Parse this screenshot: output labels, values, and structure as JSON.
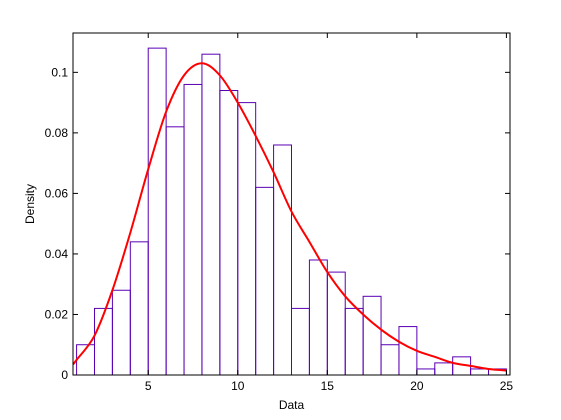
{
  "chart_data": {
    "type": "bar",
    "title": "",
    "xlabel": "Data",
    "ylabel": "Density",
    "xlim": [
      0.8,
      25.2
    ],
    "ylim": [
      0,
      0.113
    ],
    "xticks": [
      5,
      10,
      15,
      20,
      25
    ],
    "xtick_labels": [
      "5",
      "10",
      "15",
      "20",
      "25"
    ],
    "yticks": [
      0,
      0.02,
      0.04,
      0.06,
      0.08,
      0.1
    ],
    "ytick_labels": [
      "0",
      "0.02",
      "0.04",
      "0.06",
      "0.08",
      "0.1"
    ],
    "grid": false,
    "bin_edges": [
      1,
      2,
      3,
      4,
      5,
      6,
      7,
      8,
      9,
      10,
      11,
      12,
      13,
      14,
      15,
      16,
      17,
      18,
      19,
      20,
      21,
      22,
      23,
      24,
      25
    ],
    "series": [
      {
        "kind": "histogram",
        "values": [
          0.01,
          0.022,
          0.028,
          0.044,
          0.108,
          0.082,
          0.096,
          0.106,
          0.094,
          0.09,
          0.062,
          0.076,
          0.022,
          0.038,
          0.034,
          0.022,
          0.026,
          0.01,
          0.016,
          0.002,
          0.004,
          0.006,
          0.002,
          0.002
        ],
        "color": "#5a00b4"
      },
      {
        "kind": "fitted-curve",
        "x": [
          0.8,
          1,
          2,
          3,
          4,
          5,
          6,
          7,
          8,
          9,
          10,
          11,
          12,
          13,
          14,
          15,
          16,
          17,
          18,
          19,
          20,
          21,
          22,
          23,
          24,
          25
        ],
        "values": [
          0.0035,
          0.005,
          0.013,
          0.028,
          0.047,
          0.068,
          0.087,
          0.099,
          0.103,
          0.099,
          0.09,
          0.079,
          0.067,
          0.054,
          0.044,
          0.034,
          0.026,
          0.02,
          0.015,
          0.011,
          0.008,
          0.006,
          0.004,
          0.003,
          0.002,
          0.0015
        ],
        "color": "#ff0000"
      }
    ]
  }
}
